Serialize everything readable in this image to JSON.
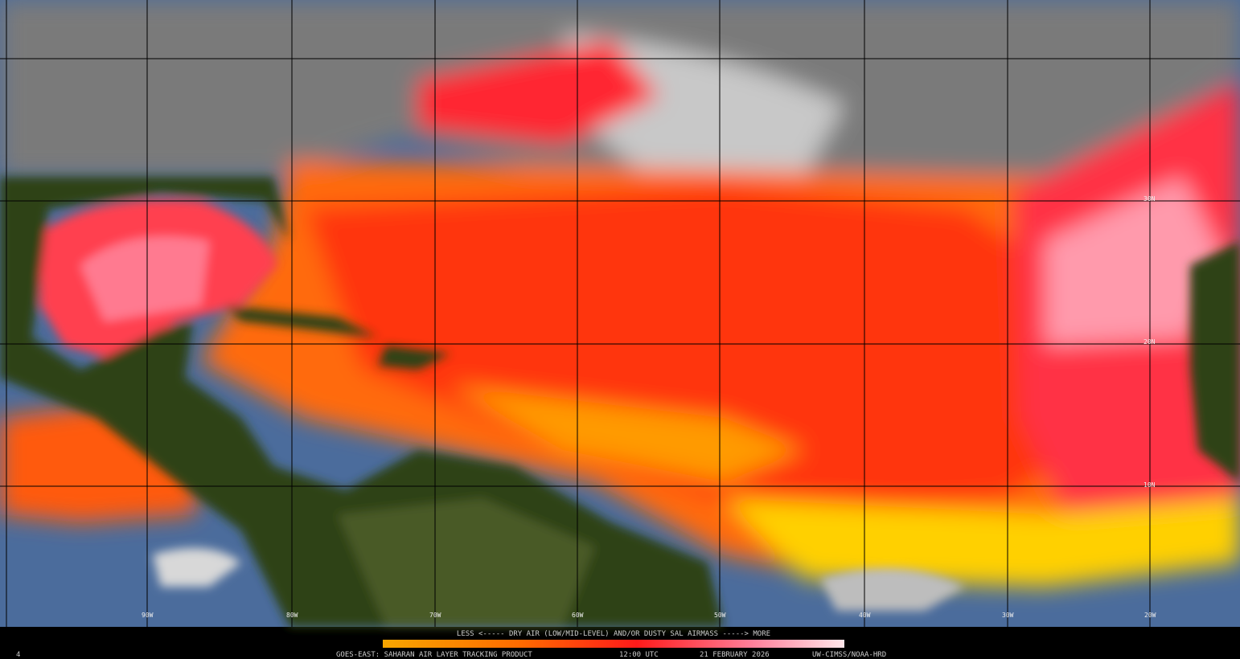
{
  "map": {
    "lat_labels": [
      "30N",
      "20N",
      "10N"
    ],
    "lon_labels": [
      "90W",
      "80W",
      "70W",
      "60W",
      "50W",
      "40W",
      "30W",
      "20W"
    ],
    "frame_number": "4",
    "legend": "LESS <----- DRY AIR (LOW/MID-LEVEL) AND/OR DUSTY SAL AIRMASS -----> MORE",
    "footer": {
      "product": "GOES-EAST: SAHARAN AIR LAYER TRACKING PRODUCT",
      "time": "12:00 UTC",
      "date": "21 FEBRUARY 2026",
      "credit": "UW-CIMSS/NOAA-HRD"
    }
  }
}
